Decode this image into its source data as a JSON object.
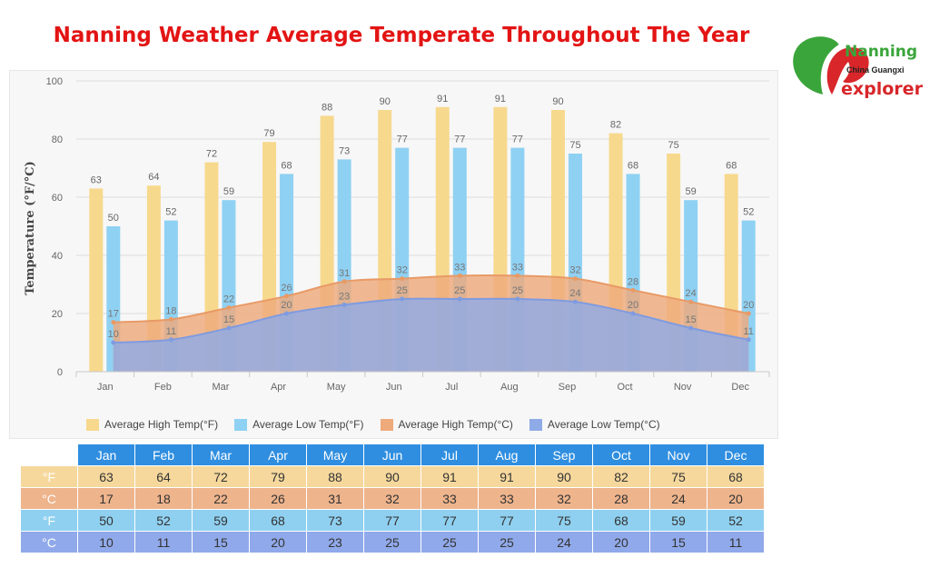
{
  "title": "Nanning Weather Average Temperate Throughout The Year",
  "logo": {
    "line1": "Nanning",
    "line2": "China Guangxi",
    "line3": "explorer"
  },
  "colors": {
    "high_f": "#f7d98e",
    "low_f": "#8fd1f3",
    "high_c": "#eeaa7b",
    "low_c": "#8fabe7",
    "title": "#e31414",
    "table_header": "#2f8ee0"
  },
  "chart_data": {
    "type": "bar",
    "categories": [
      "Jan",
      "Feb",
      "Mar",
      "Apr",
      "May",
      "Jun",
      "Jul",
      "Aug",
      "Sep",
      "Oct",
      "Nov",
      "Dec"
    ],
    "series": [
      {
        "name": "Average High Temp(°F)",
        "kind": "bar",
        "values": [
          63,
          64,
          72,
          79,
          88,
          90,
          91,
          91,
          90,
          82,
          75,
          68
        ]
      },
      {
        "name": "Average Low Temp(°F)",
        "kind": "bar",
        "values": [
          50,
          52,
          59,
          68,
          73,
          77,
          77,
          77,
          75,
          68,
          59,
          52
        ]
      },
      {
        "name": "Average High Temp(°C)",
        "kind": "area",
        "values": [
          17,
          18,
          22,
          26,
          31,
          32,
          33,
          33,
          32,
          28,
          24,
          20
        ]
      },
      {
        "name": "Average Low Temp(°C)",
        "kind": "area",
        "values": [
          10,
          11,
          15,
          20,
          23,
          25,
          25,
          25,
          24,
          20,
          15,
          11
        ]
      }
    ],
    "ylabel": "Temperature (°F/°C)",
    "xlabel": "",
    "ylim": [
      0,
      100
    ],
    "yticks": [
      0,
      20,
      40,
      60,
      80,
      100
    ],
    "grid": true,
    "legend": "bottom"
  },
  "table": {
    "months": [
      "Jan",
      "Feb",
      "Mar",
      "Apr",
      "May",
      "Jun",
      "Jul",
      "Aug",
      "Sep",
      "Oct",
      "Nov",
      "Dec"
    ],
    "rows": [
      {
        "label": "°F",
        "values": [
          "63",
          "64",
          "72",
          "79",
          "88",
          "90",
          "91",
          "91",
          "90",
          "82",
          "75",
          "68"
        ]
      },
      {
        "label": "°C",
        "values": [
          "17",
          "18",
          "22",
          "26",
          "31",
          "32",
          "33",
          "33",
          "32",
          "28",
          "24",
          "20"
        ]
      },
      {
        "label": "°F",
        "values": [
          "50",
          "52",
          "59",
          "68",
          "73",
          "77",
          "77",
          "77",
          "75",
          "68",
          "59",
          "52"
        ]
      },
      {
        "label": "°C",
        "values": [
          "10",
          "11",
          "15",
          "20",
          "23",
          "25",
          "25",
          "25",
          "24",
          "20",
          "15",
          "11"
        ]
      }
    ]
  }
}
